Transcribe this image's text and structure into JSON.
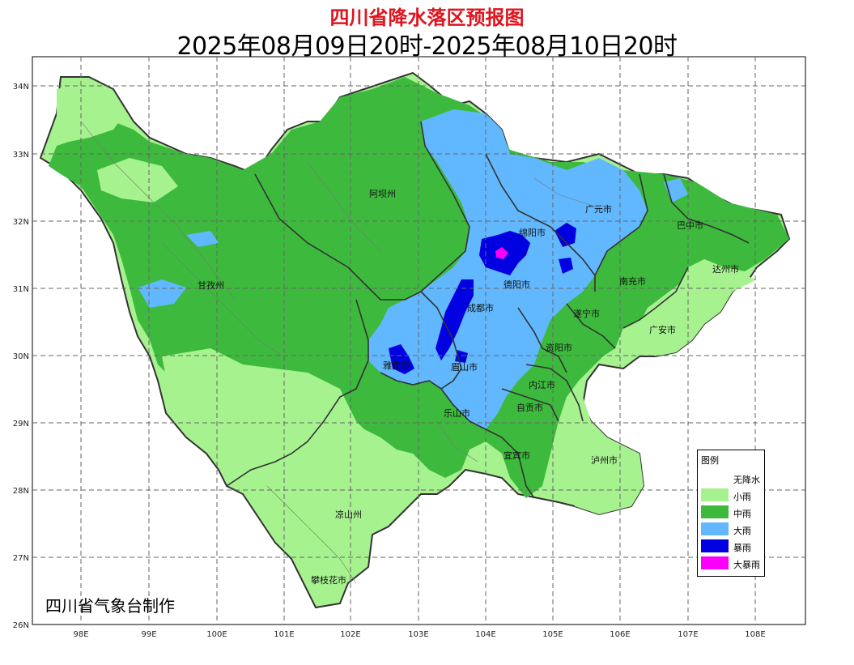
{
  "map": {
    "title": "四川省降水落区预报图",
    "subtitle": "2025年08月09日20时-2025年08月10日20时",
    "credit": "四川省气象台制作",
    "lon_ticks": [
      "98E",
      "99E",
      "100E",
      "101E",
      "102E",
      "103E",
      "104E",
      "105E",
      "106E",
      "107E",
      "108E"
    ],
    "lat_ticks": [
      "34N",
      "33N",
      "32N",
      "31N",
      "30N",
      "29N",
      "28N",
      "27N",
      "26N"
    ],
    "cities": [
      "阿坝州",
      "甘孜州",
      "广元市",
      "巴中市",
      "达州市",
      "绵阳市",
      "德阳市",
      "南充市",
      "遂宁市",
      "成都市",
      "广安市",
      "资阳市",
      "雅安市",
      "眉山市",
      "内江市",
      "自贡市",
      "乐山市",
      "宜宾市",
      "泸州市",
      "凉山州",
      "攀枝花市"
    ],
    "colors": {
      "none": "#ffffff",
      "light": "#a6f28f",
      "moderate": "#3dba3d",
      "heavy": "#61b8ff",
      "rainstorm": "#0000e1",
      "heavy_rainstorm": "#fa00fa"
    }
  },
  "legend": {
    "title": "图例",
    "items": [
      {
        "label": "无降水",
        "color": "#ffffff"
      },
      {
        "label": "小雨",
        "color": "#a6f28f"
      },
      {
        "label": "中雨",
        "color": "#3dba3d"
      },
      {
        "label": "大雨",
        "color": "#61b8ff"
      },
      {
        "label": "暴雨",
        "color": "#0000e1"
      },
      {
        "label": "大暴雨",
        "color": "#fa00fa"
      }
    ]
  }
}
